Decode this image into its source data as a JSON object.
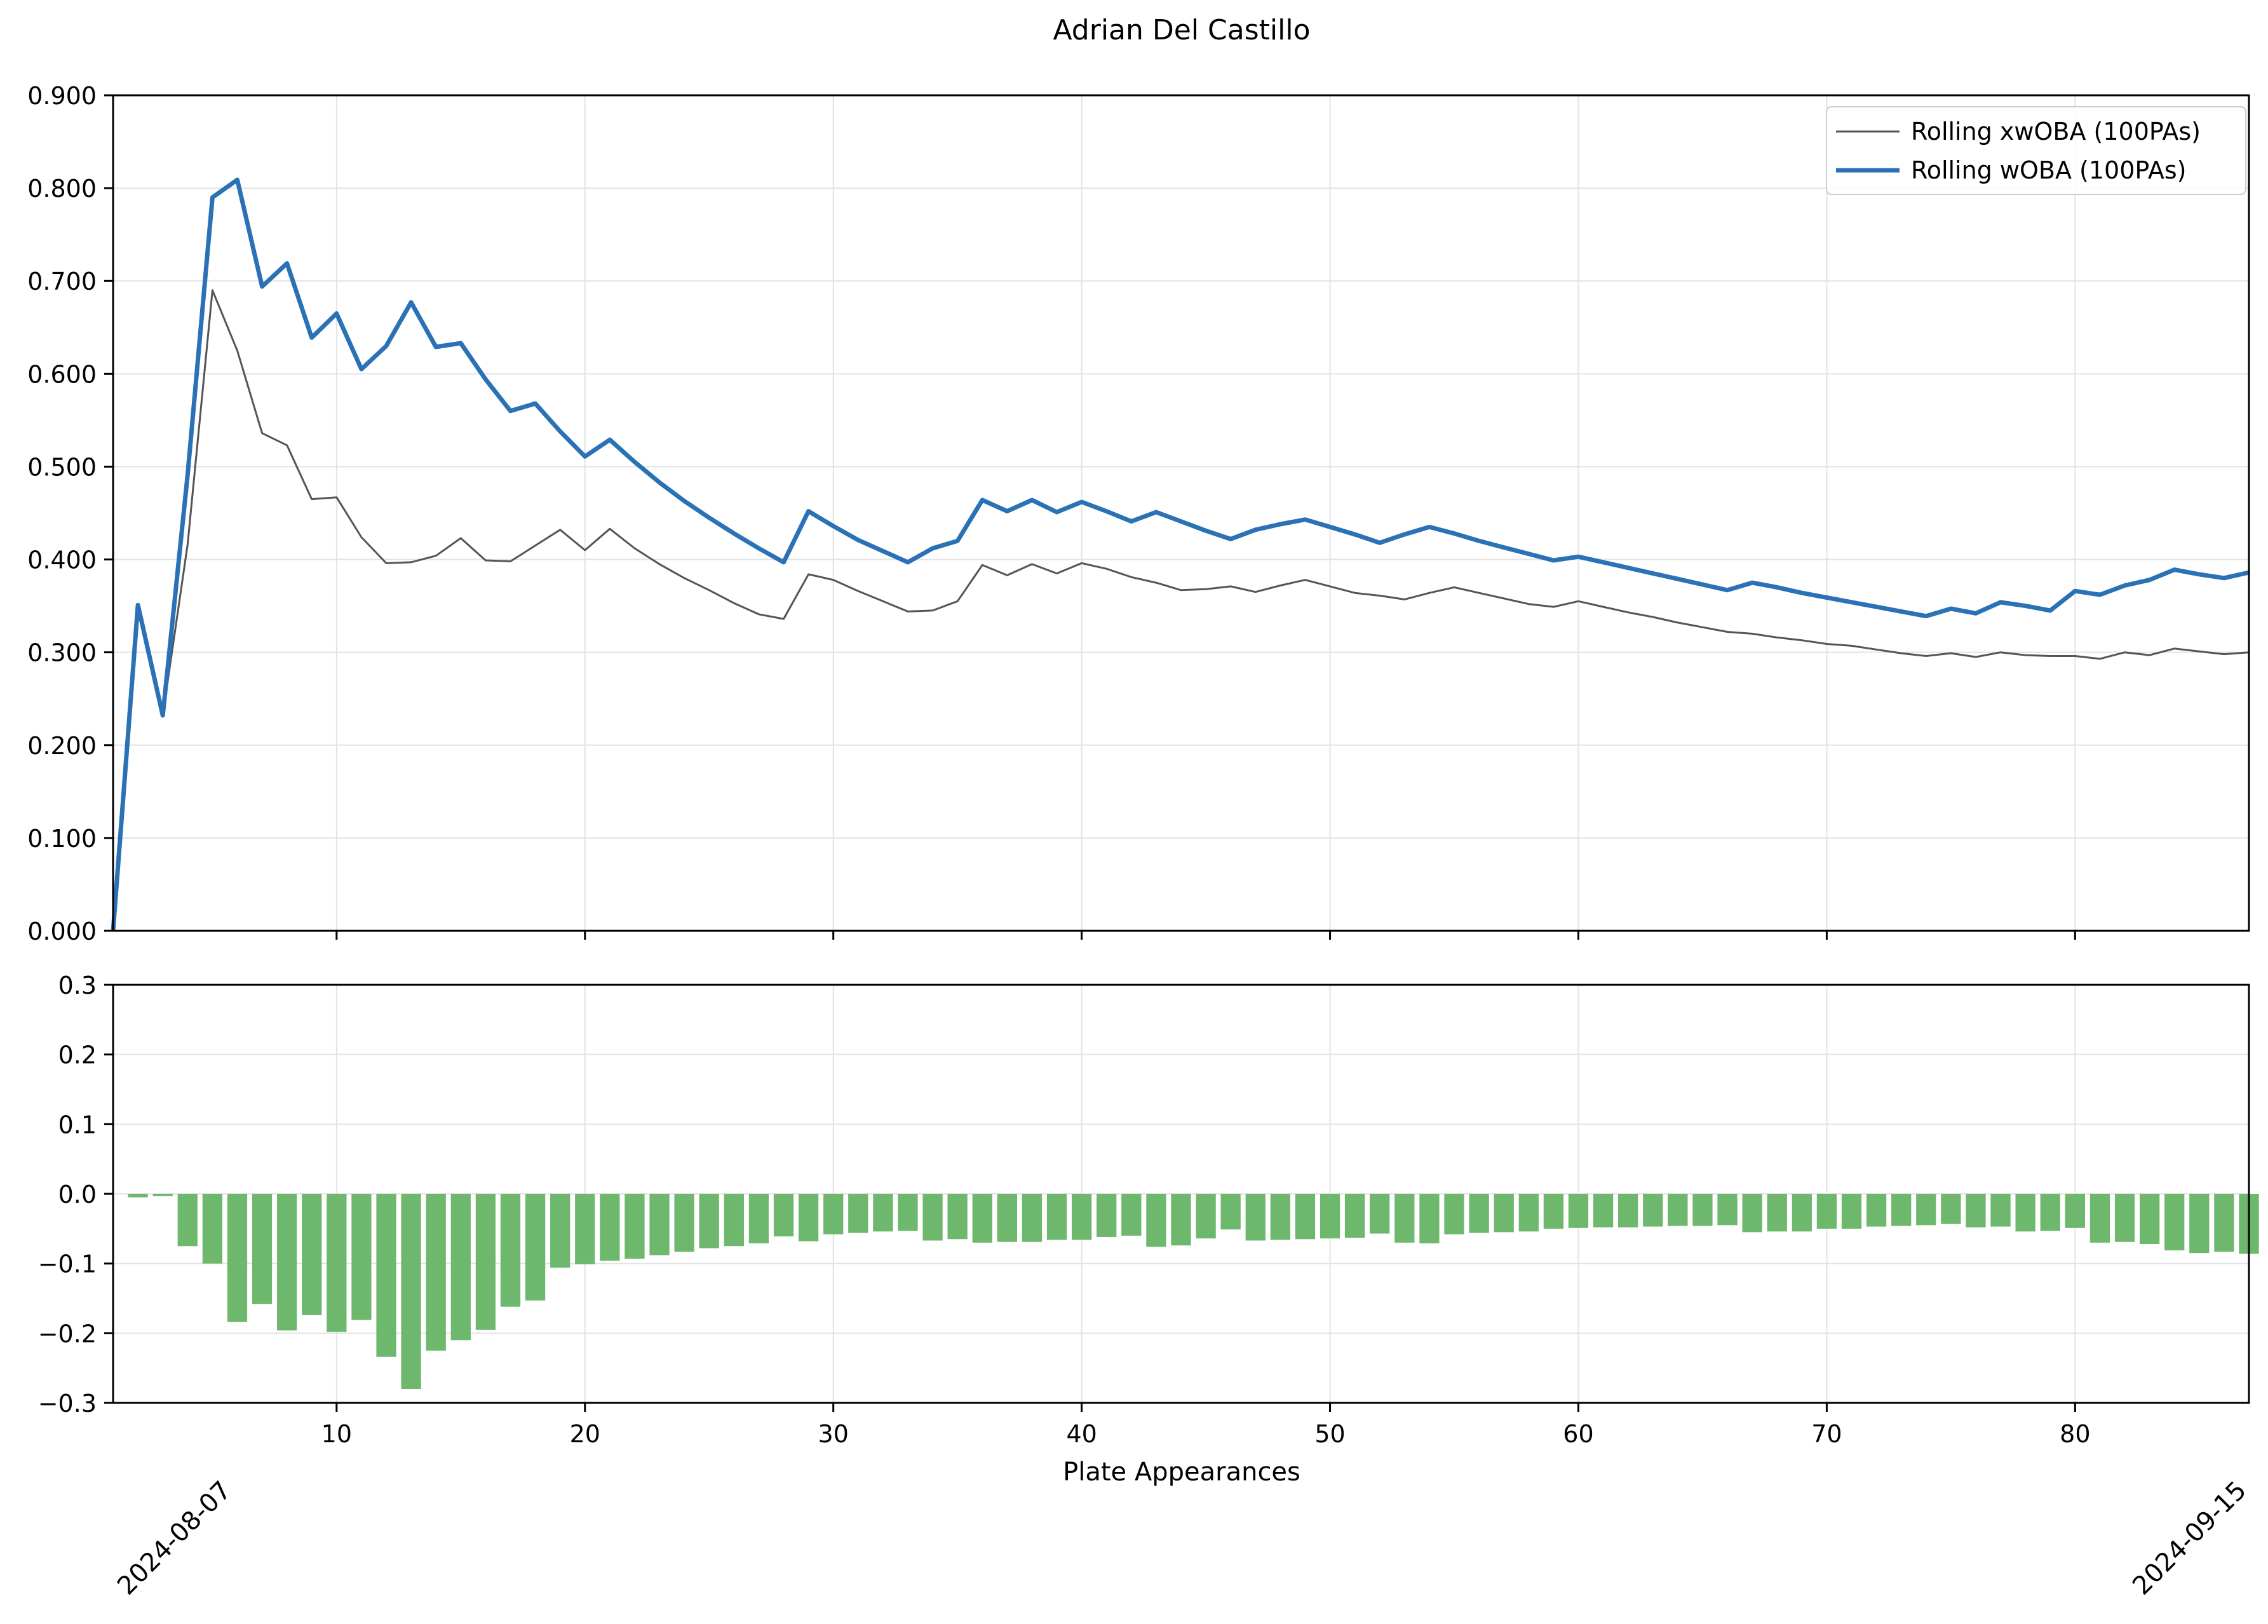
{
  "title": "Adrian Del Castillo",
  "colors": {
    "xwoba": "#555555",
    "woba": "#2a72b5",
    "diff_bar": "#6db86d",
    "grid": "#e3e3e3",
    "axis": "#000000"
  },
  "chart_data": [
    {
      "type": "line",
      "panel": "top",
      "xlabel": "",
      "ylabel": "",
      "xlim": [
        1,
        87
      ],
      "ylim": [
        0.0,
        0.9
      ],
      "ytick_labels": [
        "0.000",
        "0.100",
        "0.200",
        "0.300",
        "0.400",
        "0.500",
        "0.600",
        "0.700",
        "0.800",
        "0.900"
      ],
      "grid": true,
      "legend": "top-right",
      "x": [
        1,
        2,
        3,
        4,
        5,
        6,
        7,
        8,
        9,
        10,
        11,
        12,
        13,
        14,
        15,
        16,
        17,
        18,
        19,
        20,
        21,
        22,
        23,
        24,
        25,
        26,
        27,
        28,
        29,
        30,
        31,
        32,
        33,
        34,
        35,
        36,
        37,
        38,
        39,
        40,
        41,
        42,
        43,
        44,
        45,
        46,
        47,
        48,
        49,
        50,
        51,
        52,
        53,
        54,
        55,
        56,
        57,
        58,
        59,
        60,
        61,
        62,
        63,
        64,
        65,
        66,
        67,
        68,
        69,
        70,
        71,
        72,
        73,
        74,
        75,
        76,
        77,
        78,
        79,
        80,
        81,
        82,
        83,
        84,
        85,
        86,
        87
      ],
      "series": [
        {
          "name": "Rolling xwOBA (100PAs)",
          "color_key": "xwoba",
          "linewidth": "thin",
          "values": [
            0.0,
            0.351,
            0.232,
            0.416,
            0.69,
            0.625,
            0.536,
            0.523,
            0.465,
            0.467,
            0.424,
            0.396,
            0.397,
            0.404,
            0.423,
            0.399,
            0.398,
            0.415,
            0.432,
            0.41,
            0.433,
            0.412,
            0.395,
            0.38,
            0.367,
            0.353,
            0.341,
            0.336,
            0.384,
            0.378,
            0.366,
            0.355,
            0.344,
            0.345,
            0.355,
            0.394,
            0.383,
            0.395,
            0.385,
            0.396,
            0.39,
            0.381,
            0.375,
            0.367,
            0.368,
            0.371,
            0.365,
            0.372,
            0.378,
            0.371,
            0.364,
            0.361,
            0.357,
            0.364,
            0.37,
            0.364,
            0.358,
            0.352,
            0.349,
            0.355,
            0.349,
            0.343,
            0.338,
            0.332,
            0.327,
            0.322,
            0.32,
            0.316,
            0.313,
            0.309,
            0.307,
            0.303,
            0.299,
            0.296,
            0.299,
            0.295,
            0.3,
            0.297,
            0.296,
            0.296,
            0.293,
            0.3,
            0.297,
            0.304,
            0.301,
            0.298,
            0.3
          ]
        },
        {
          "name": "Rolling wOBA (100PAs)",
          "color_key": "woba",
          "linewidth": "thick",
          "values": [
            0.0,
            0.351,
            0.232,
            0.491,
            0.79,
            0.809,
            0.694,
            0.719,
            0.639,
            0.665,
            0.605,
            0.63,
            0.677,
            0.629,
            0.633,
            0.594,
            0.56,
            0.568,
            0.538,
            0.511,
            0.529,
            0.505,
            0.483,
            0.463,
            0.445,
            0.428,
            0.412,
            0.397,
            0.452,
            0.436,
            0.421,
            0.409,
            0.397,
            0.412,
            0.42,
            0.464,
            0.452,
            0.464,
            0.451,
            0.462,
            0.452,
            0.441,
            0.451,
            0.441,
            0.431,
            0.422,
            0.432,
            0.438,
            0.443,
            0.435,
            0.427,
            0.418,
            0.427,
            0.435,
            0.428,
            0.42,
            0.413,
            0.406,
            0.399,
            0.403,
            0.397,
            0.391,
            0.385,
            0.379,
            0.373,
            0.367,
            0.375,
            0.37,
            0.364,
            0.359,
            0.354,
            0.349,
            0.344,
            0.339,
            0.347,
            0.342,
            0.354,
            0.35,
            0.345,
            0.366,
            0.362,
            0.372,
            0.378,
            0.389,
            0.384,
            0.38,
            0.386
          ]
        }
      ]
    },
    {
      "type": "bar",
      "panel": "bottom",
      "xlabel": "Plate Appearances",
      "ylabel": "",
      "xlim": [
        1,
        87
      ],
      "ylim": [
        -0.3,
        0.3
      ],
      "ytick_labels": [
        "−0.3",
        "−0.2",
        "−0.1",
        "0.0",
        "0.1",
        "0.2",
        "0.3"
      ],
      "xtick_labels": [
        "10",
        "20",
        "30",
        "40",
        "50",
        "60",
        "70",
        "80"
      ],
      "date_labels": [
        "2024-08-07",
        "2024-09-15"
      ],
      "grid": true,
      "x": [
        2,
        3,
        4,
        5,
        6,
        7,
        8,
        9,
        10,
        11,
        12,
        13,
        14,
        15,
        16,
        17,
        18,
        19,
        20,
        21,
        22,
        23,
        24,
        25,
        26,
        27,
        28,
        29,
        30,
        31,
        32,
        33,
        34,
        35,
        36,
        37,
        38,
        39,
        40,
        41,
        42,
        43,
        44,
        45,
        46,
        47,
        48,
        49,
        50,
        51,
        52,
        53,
        54,
        55,
        56,
        57,
        58,
        59,
        60,
        61,
        62,
        63,
        64,
        65,
        66,
        67,
        68,
        69,
        70,
        71,
        72,
        73,
        74,
        75,
        76,
        77,
        78,
        79,
        80,
        81,
        82,
        83,
        84,
        85,
        86,
        87
      ],
      "values": [
        -0.005,
        -0.003,
        -0.075,
        -0.1,
        -0.184,
        -0.158,
        -0.196,
        -0.174,
        -0.198,
        -0.181,
        -0.234,
        -0.28,
        -0.225,
        -0.21,
        -0.195,
        -0.162,
        -0.153,
        -0.106,
        -0.101,
        -0.096,
        -0.093,
        -0.088,
        -0.083,
        -0.078,
        -0.075,
        -0.071,
        -0.061,
        -0.068,
        -0.058,
        -0.056,
        -0.054,
        -0.053,
        -0.067,
        -0.065,
        -0.07,
        -0.069,
        -0.069,
        -0.066,
        -0.066,
        -0.062,
        -0.06,
        -0.076,
        -0.074,
        -0.064,
        -0.051,
        -0.067,
        -0.066,
        -0.065,
        -0.064,
        -0.063,
        -0.057,
        -0.07,
        -0.071,
        -0.058,
        -0.056,
        -0.055,
        -0.054,
        -0.05,
        -0.049,
        -0.048,
        -0.048,
        -0.047,
        -0.046,
        -0.046,
        -0.045,
        -0.055,
        -0.054,
        -0.054,
        -0.05,
        -0.05,
        -0.047,
        -0.046,
        -0.045,
        -0.043,
        -0.048,
        -0.047,
        -0.054,
        -0.053,
        -0.049,
        -0.07,
        -0.069,
        -0.072,
        -0.081,
        -0.085,
        -0.083,
        -0.086
      ]
    }
  ]
}
